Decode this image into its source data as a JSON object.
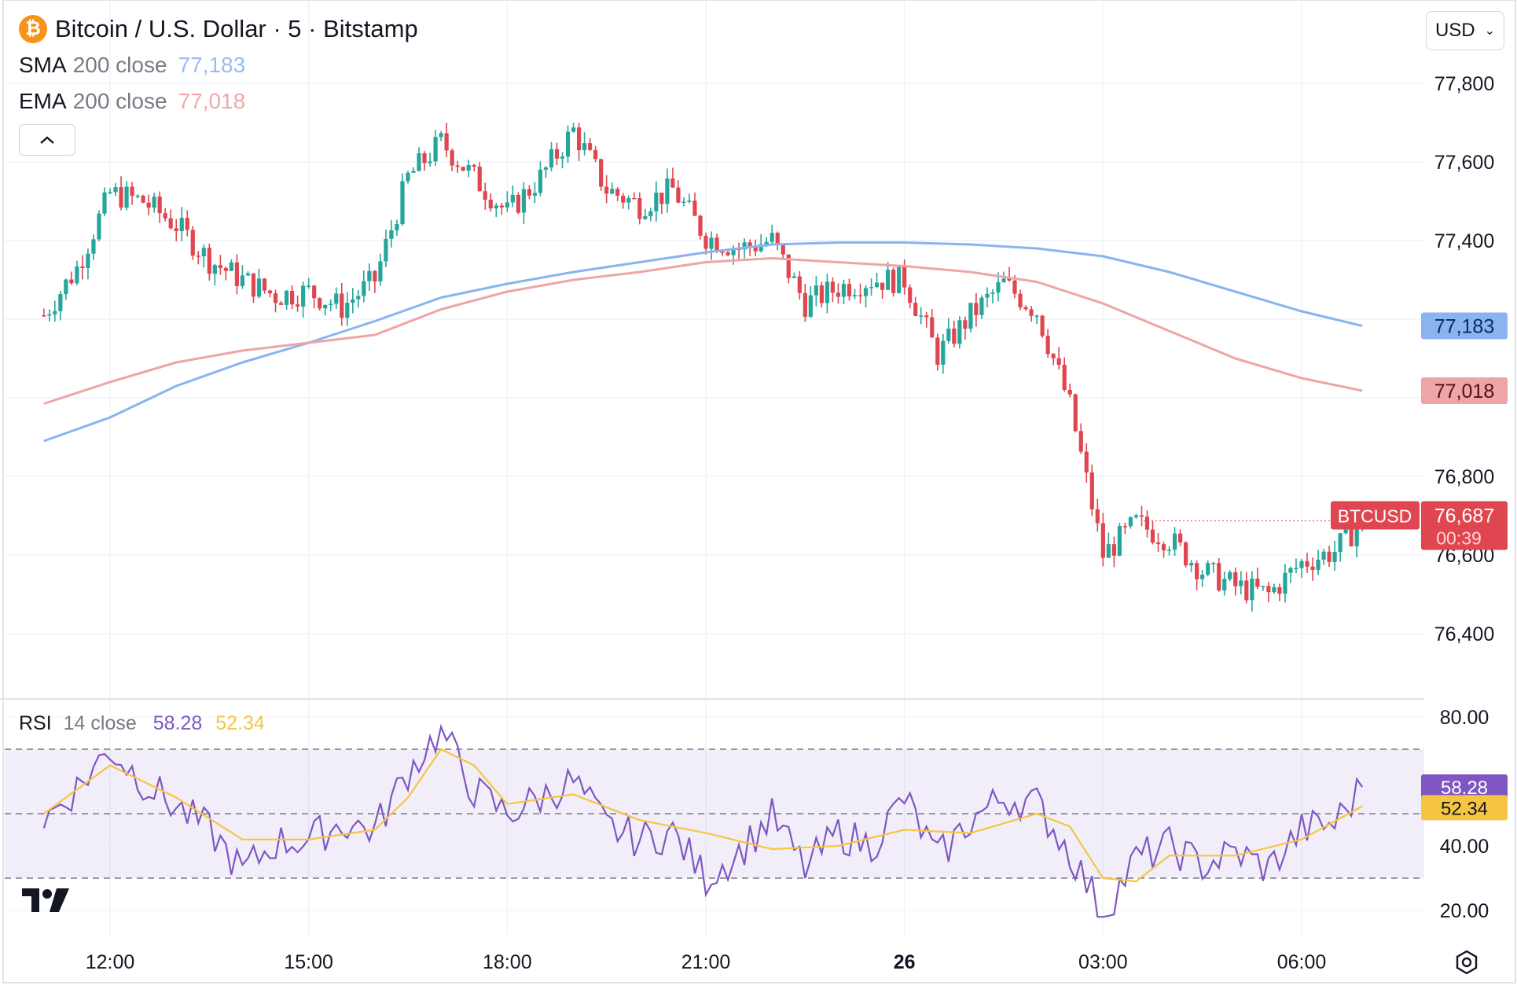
{
  "header": {
    "title": "Bitcoin / U.S. Dollar · 5 · Bitstamp",
    "coin_symbol": "₿",
    "currency": "USD"
  },
  "indicators": {
    "sma": {
      "name": "SMA",
      "params": "200 close",
      "value": "77,183",
      "color": "#9bbcf0"
    },
    "ema": {
      "name": "EMA",
      "params": "200 close",
      "value": "77,018",
      "color": "#f0a8a8"
    },
    "rsi": {
      "name": "RSI",
      "params": "14 close",
      "value": "58.28",
      "ma_value": "52.34",
      "color": "#7e57c2",
      "ma_color": "#f5c542"
    }
  },
  "price_label": {
    "symbol": "BTCUSD",
    "price": "76,687",
    "countdown": "00:39",
    "color": "#e0464f"
  },
  "colors": {
    "up": "#26a69a",
    "down": "#e0464f",
    "grid": "#f0f3fa",
    "sma_line": "#8ab4f0",
    "ema_line": "#eea5a5"
  },
  "chart_data": [
    {
      "type": "candlestick",
      "title": "Bitcoin / U.S. Dollar · 5 · Bitstamp",
      "x_ticks": [
        "12:00",
        "15:00",
        "18:00",
        "21:00",
        "26",
        "03:00",
        "06:00"
      ],
      "y_ticks": [
        "77,800",
        "77,600",
        "77,400",
        "76,800",
        "76,400"
      ],
      "ylim": [
        76240,
        77960
      ],
      "approx_close_path": [
        {
          "x": "11:00",
          "y": 77210
        },
        {
          "x": "11:30",
          "y": 77330
        },
        {
          "x": "12:00",
          "y": 77520
        },
        {
          "x": "12:30",
          "y": 77500
        },
        {
          "x": "13:00",
          "y": 77440
        },
        {
          "x": "13:30",
          "y": 77350
        },
        {
          "x": "14:00",
          "y": 77300
        },
        {
          "x": "14:30",
          "y": 77260
        },
        {
          "x": "15:00",
          "y": 77270
        },
        {
          "x": "15:30",
          "y": 77230
        },
        {
          "x": "16:00",
          "y": 77300
        },
        {
          "x": "16:30",
          "y": 77560
        },
        {
          "x": "17:00",
          "y": 77650
        },
        {
          "x": "17:30",
          "y": 77560
        },
        {
          "x": "18:00",
          "y": 77470
        },
        {
          "x": "18:30",
          "y": 77560
        },
        {
          "x": "19:00",
          "y": 77680
        },
        {
          "x": "19:30",
          "y": 77530
        },
        {
          "x": "20:00",
          "y": 77490
        },
        {
          "x": "20:30",
          "y": 77530
        },
        {
          "x": "21:00",
          "y": 77410
        },
        {
          "x": "21:30",
          "y": 77380
        },
        {
          "x": "22:00",
          "y": 77400
        },
        {
          "x": "22:30",
          "y": 77240
        },
        {
          "x": "23:00",
          "y": 77280
        },
        {
          "x": "23:30",
          "y": 77300
        },
        {
          "x": "00:00",
          "y": 77300
        },
        {
          "x": "00:30",
          "y": 77110
        },
        {
          "x": "01:00",
          "y": 77210
        },
        {
          "x": "01:30",
          "y": 77290
        },
        {
          "x": "02:00",
          "y": 77220
        },
        {
          "x": "02:30",
          "y": 76980
        },
        {
          "x": "03:00",
          "y": 76600
        },
        {
          "x": "03:30",
          "y": 76680
        },
        {
          "x": "04:00",
          "y": 76640
        },
        {
          "x": "04:30",
          "y": 76560
        },
        {
          "x": "05:00",
          "y": 76520
        },
        {
          "x": "05:30",
          "y": 76500
        },
        {
          "x": "06:00",
          "y": 76580
        },
        {
          "x": "06:30",
          "y": 76610
        },
        {
          "x": "06:55",
          "y": 76687
        }
      ],
      "series": [
        {
          "name": "SMA 200 close",
          "type": "line",
          "points": [
            {
              "x": "11:00",
              "y": 76890
            },
            {
              "x": "12:00",
              "y": 76950
            },
            {
              "x": "13:00",
              "y": 77030
            },
            {
              "x": "14:00",
              "y": 77090
            },
            {
              "x": "15:00",
              "y": 77140
            },
            {
              "x": "16:00",
              "y": 77195
            },
            {
              "x": "17:00",
              "y": 77255
            },
            {
              "x": "18:00",
              "y": 77290
            },
            {
              "x": "19:00",
              "y": 77320
            },
            {
              "x": "20:00",
              "y": 77345
            },
            {
              "x": "21:00",
              "y": 77370
            },
            {
              "x": "22:00",
              "y": 77390
            },
            {
              "x": "23:00",
              "y": 77395
            },
            {
              "x": "00:00",
              "y": 77395
            },
            {
              "x": "01:00",
              "y": 77390
            },
            {
              "x": "02:00",
              "y": 77380
            },
            {
              "x": "03:00",
              "y": 77360
            },
            {
              "x": "04:00",
              "y": 77320
            },
            {
              "x": "05:00",
              "y": 77270
            },
            {
              "x": "06:00",
              "y": 77220
            },
            {
              "x": "06:55",
              "y": 77183
            }
          ]
        },
        {
          "name": "EMA 200 close",
          "type": "line",
          "points": [
            {
              "x": "11:00",
              "y": 76985
            },
            {
              "x": "12:00",
              "y": 77040
            },
            {
              "x": "13:00",
              "y": 77090
            },
            {
              "x": "14:00",
              "y": 77120
            },
            {
              "x": "15:00",
              "y": 77140
            },
            {
              "x": "16:00",
              "y": 77160
            },
            {
              "x": "17:00",
              "y": 77225
            },
            {
              "x": "18:00",
              "y": 77270
            },
            {
              "x": "19:00",
              "y": 77300
            },
            {
              "x": "20:00",
              "y": 77320
            },
            {
              "x": "21:00",
              "y": 77345
            },
            {
              "x": "22:00",
              "y": 77355
            },
            {
              "x": "23:00",
              "y": 77345
            },
            {
              "x": "00:00",
              "y": 77335
            },
            {
              "x": "01:00",
              "y": 77320
            },
            {
              "x": "02:00",
              "y": 77295
            },
            {
              "x": "03:00",
              "y": 77240
            },
            {
              "x": "04:00",
              "y": 77170
            },
            {
              "x": "05:00",
              "y": 77100
            },
            {
              "x": "06:00",
              "y": 77050
            },
            {
              "x": "06:55",
              "y": 77018
            }
          ]
        }
      ]
    },
    {
      "type": "line",
      "title": "RSI 14 close",
      "x_ticks": [
        "12:00",
        "15:00",
        "18:00",
        "21:00",
        "26",
        "03:00",
        "06:00"
      ],
      "y_ticks": [
        "80.00",
        "40.00",
        "20.00"
      ],
      "ylim": [
        15,
        82
      ],
      "bands": {
        "upper": 70,
        "middle": 50,
        "lower": 30
      },
      "series": [
        {
          "name": "RSI",
          "points": [
            {
              "x": "11:00",
              "y": 48
            },
            {
              "x": "11:30",
              "y": 58
            },
            {
              "x": "12:00",
              "y": 70
            },
            {
              "x": "12:30",
              "y": 60
            },
            {
              "x": "13:00",
              "y": 52
            },
            {
              "x": "13:30",
              "y": 45
            },
            {
              "x": "14:00",
              "y": 32
            },
            {
              "x": "14:30",
              "y": 41
            },
            {
              "x": "15:00",
              "y": 42
            },
            {
              "x": "15:30",
              "y": 47
            },
            {
              "x": "16:00",
              "y": 45
            },
            {
              "x": "16:30",
              "y": 63
            },
            {
              "x": "17:00",
              "y": 76
            },
            {
              "x": "17:30",
              "y": 57
            },
            {
              "x": "18:00",
              "y": 50
            },
            {
              "x": "18:30",
              "y": 55
            },
            {
              "x": "19:00",
              "y": 60
            },
            {
              "x": "19:30",
              "y": 46
            },
            {
              "x": "20:00",
              "y": 42
            },
            {
              "x": "20:30",
              "y": 44
            },
            {
              "x": "21:00",
              "y": 30
            },
            {
              "x": "21:30",
              "y": 38
            },
            {
              "x": "22:00",
              "y": 49
            },
            {
              "x": "22:30",
              "y": 33
            },
            {
              "x": "23:00",
              "y": 44
            },
            {
              "x": "23:30",
              "y": 40
            },
            {
              "x": "00:00",
              "y": 55
            },
            {
              "x": "00:30",
              "y": 36
            },
            {
              "x": "01:00",
              "y": 48
            },
            {
              "x": "01:30",
              "y": 55
            },
            {
              "x": "02:00",
              "y": 53
            },
            {
              "x": "02:30",
              "y": 38
            },
            {
              "x": "03:00",
              "y": 19
            },
            {
              "x": "03:30",
              "y": 36
            },
            {
              "x": "04:00",
              "y": 40
            },
            {
              "x": "04:30",
              "y": 34
            },
            {
              "x": "05:00",
              "y": 38
            },
            {
              "x": "05:30",
              "y": 33
            },
            {
              "x": "06:00",
              "y": 45
            },
            {
              "x": "06:30",
              "y": 47
            },
            {
              "x": "06:55",
              "y": 58.28
            }
          ]
        },
        {
          "name": "RSI-based MA",
          "points": [
            {
              "x": "11:00",
              "y": 50
            },
            {
              "x": "12:00",
              "y": 65
            },
            {
              "x": "13:00",
              "y": 55
            },
            {
              "x": "14:00",
              "y": 42
            },
            {
              "x": "15:00",
              "y": 42
            },
            {
              "x": "16:00",
              "y": 45
            },
            {
              "x": "16:30",
              "y": 55
            },
            {
              "x": "17:00",
              "y": 70
            },
            {
              "x": "17:30",
              "y": 65
            },
            {
              "x": "18:00",
              "y": 53
            },
            {
              "x": "19:00",
              "y": 56
            },
            {
              "x": "20:00",
              "y": 48
            },
            {
              "x": "21:00",
              "y": 44
            },
            {
              "x": "22:00",
              "y": 39
            },
            {
              "x": "23:00",
              "y": 40
            },
            {
              "x": "00:00",
              "y": 45
            },
            {
              "x": "01:00",
              "y": 44
            },
            {
              "x": "02:00",
              "y": 50
            },
            {
              "x": "02:30",
              "y": 46
            },
            {
              "x": "03:00",
              "y": 30
            },
            {
              "x": "03:30",
              "y": 29
            },
            {
              "x": "04:00",
              "y": 37
            },
            {
              "x": "05:00",
              "y": 37
            },
            {
              "x": "06:00",
              "y": 42
            },
            {
              "x": "06:55",
              "y": 52.34
            }
          ]
        }
      ]
    }
  ]
}
